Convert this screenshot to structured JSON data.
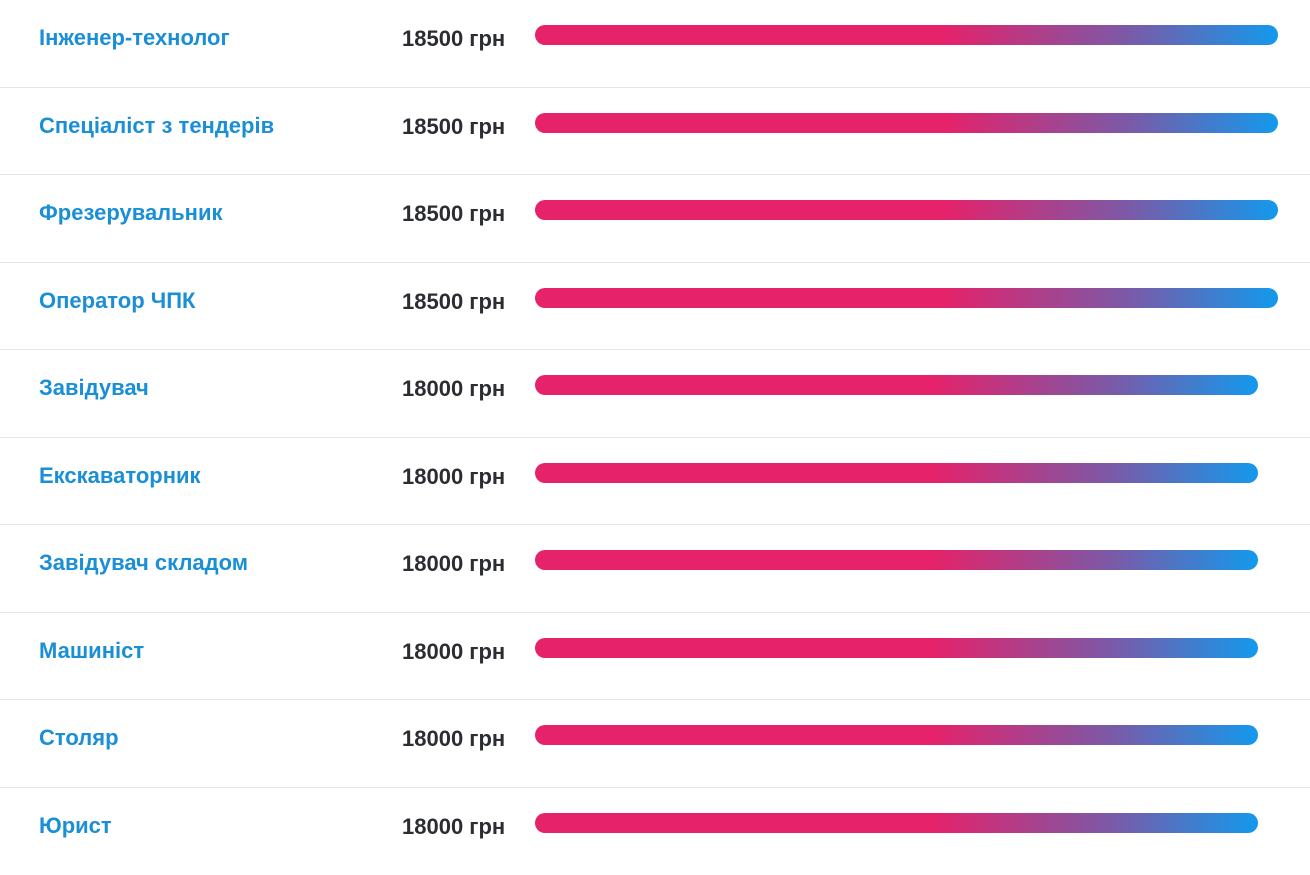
{
  "accent_colors": {
    "title": "#1a8fd6",
    "salary": "#2b2d33",
    "bar_start": "#e5226a",
    "bar_end": "#1399ec"
  },
  "max_salary": 18500,
  "rows": [
    {
      "title": "Інженер-технолог",
      "salary_label": "18500 грн",
      "salary": 18500
    },
    {
      "title": "Спеціаліст з тендерів",
      "salary_label": "18500 грн",
      "salary": 18500
    },
    {
      "title": "Фрезерувальник",
      "salary_label": "18500 грн",
      "salary": 18500
    },
    {
      "title": "Оператор ЧПК",
      "salary_label": "18500 грн",
      "salary": 18500
    },
    {
      "title": "Завідувач",
      "salary_label": "18000 грн",
      "salary": 18000
    },
    {
      "title": "Екскаваторник",
      "salary_label": "18000 грн",
      "salary": 18000
    },
    {
      "title": "Завідувач складом",
      "salary_label": "18000 грн",
      "salary": 18000
    },
    {
      "title": "Машиніст",
      "salary_label": "18000 грн",
      "salary": 18000
    },
    {
      "title": "Столяр",
      "salary_label": "18000 грн",
      "salary": 18000
    },
    {
      "title": "Юрист",
      "salary_label": "18000 грн",
      "salary": 18000
    }
  ]
}
